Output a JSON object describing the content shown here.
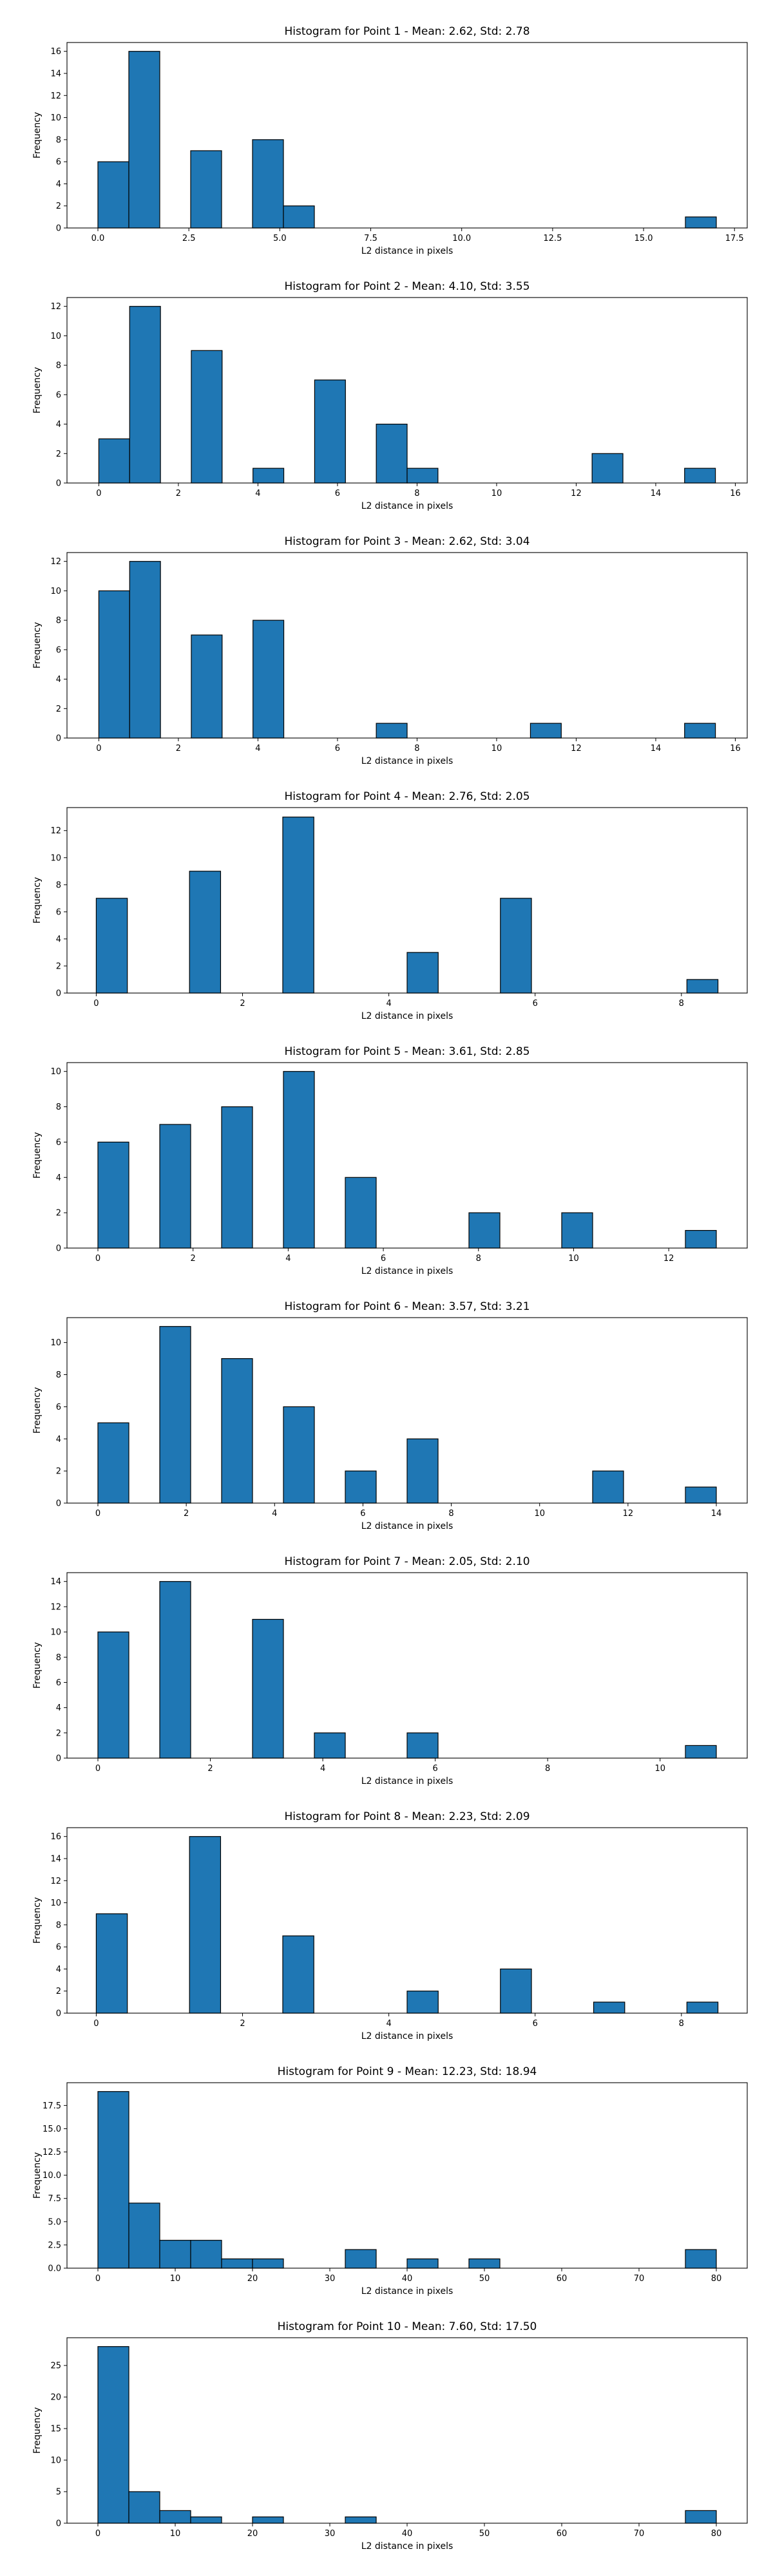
{
  "figure": {
    "background": "#ffffff",
    "bar_color": "#1f77b4",
    "edge_color": "#000000"
  },
  "chart_data": [
    {
      "type": "bar",
      "title": "Histogram for Point 1 - Mean: 2.62, Std: 2.78",
      "xlabel": "L2 distance in pixels",
      "ylabel": "Frequency",
      "xlim": [
        -0.85,
        17.85
      ],
      "ylim": [
        0,
        16.8
      ],
      "x_ticks": [
        0.0,
        2.5,
        5.0,
        7.5,
        10.0,
        12.5,
        15.0,
        17.5
      ],
      "x_tick_labels": [
        "0.0",
        "2.5",
        "5.0",
        "7.5",
        "10.0",
        "12.5",
        "15.0",
        "17.5"
      ],
      "y_ticks": [
        0,
        2,
        4,
        6,
        8,
        10,
        12,
        14,
        16
      ],
      "bin_edges": [
        0,
        0.85,
        1.7,
        2.55,
        3.4,
        4.25,
        5.1,
        5.95,
        6.8,
        7.65,
        8.5,
        9.35,
        10.2,
        11.05,
        11.9,
        12.75,
        13.6,
        14.45,
        15.3,
        16.15,
        17.0
      ],
      "counts": [
        6,
        16,
        0,
        7,
        0,
        8,
        2,
        0,
        0,
        0,
        0,
        0,
        0,
        0,
        0,
        0,
        0,
        0,
        0,
        1
      ]
    },
    {
      "type": "bar",
      "title": "Histogram for Point 2 - Mean: 4.10, Std: 3.55",
      "xlabel": "L2 distance in pixels",
      "ylabel": "Frequency",
      "xlim": [
        -0.8,
        16.3
      ],
      "ylim": [
        0,
        12.6
      ],
      "x_ticks": [
        0,
        2,
        4,
        6,
        8,
        10,
        12,
        14,
        16
      ],
      "x_tick_labels": [
        "0",
        "2",
        "4",
        "6",
        "8",
        "10",
        "12",
        "14",
        "16"
      ],
      "y_ticks": [
        0,
        2,
        4,
        6,
        8,
        10,
        12
      ],
      "bin_edges": [
        0,
        0.775,
        1.55,
        2.325,
        3.1,
        3.875,
        4.65,
        5.425,
        6.2,
        6.975,
        7.75,
        8.525,
        9.3,
        10.075,
        10.85,
        11.625,
        12.4,
        13.175,
        13.95,
        14.725,
        15.5
      ],
      "counts": [
        3,
        12,
        0,
        9,
        0,
        1,
        0,
        7,
        0,
        4,
        1,
        0,
        0,
        0,
        0,
        0,
        2,
        0,
        0,
        1
      ]
    },
    {
      "type": "bar",
      "title": "Histogram for Point 3 - Mean: 2.62, Std: 3.04",
      "xlabel": "L2 distance in pixels",
      "ylabel": "Frequency",
      "xlim": [
        -0.8,
        16.3
      ],
      "ylim": [
        0,
        12.6
      ],
      "x_ticks": [
        0,
        2,
        4,
        6,
        8,
        10,
        12,
        14,
        16
      ],
      "x_tick_labels": [
        "0",
        "2",
        "4",
        "6",
        "8",
        "10",
        "12",
        "14",
        "16"
      ],
      "y_ticks": [
        0,
        2,
        4,
        6,
        8,
        10,
        12
      ],
      "bin_edges": [
        0,
        0.775,
        1.55,
        2.325,
        3.1,
        3.875,
        4.65,
        5.425,
        6.2,
        6.975,
        7.75,
        8.525,
        9.3,
        10.075,
        10.85,
        11.625,
        12.4,
        13.175,
        13.95,
        14.725,
        15.5
      ],
      "counts": [
        10,
        12,
        0,
        7,
        0,
        8,
        0,
        0,
        0,
        1,
        0,
        0,
        0,
        0,
        1,
        0,
        0,
        0,
        0,
        1
      ]
    },
    {
      "type": "bar",
      "title": "Histogram for Point 4 - Mean: 2.76, Std: 2.05",
      "xlabel": "L2 distance in pixels",
      "ylabel": "Frequency",
      "xlim": [
        -0.4,
        8.9
      ],
      "ylim": [
        0,
        13.7
      ],
      "x_ticks": [
        0,
        2,
        4,
        6,
        8
      ],
      "x_tick_labels": [
        "0",
        "2",
        "4",
        "6",
        "8"
      ],
      "y_ticks": [
        0,
        2,
        4,
        6,
        8,
        10,
        12
      ],
      "bin_edges": [
        0,
        0.425,
        0.85,
        1.275,
        1.7,
        2.125,
        2.55,
        2.975,
        3.4,
        3.825,
        4.25,
        4.675,
        5.1,
        5.525,
        5.95,
        6.375,
        6.8,
        7.225,
        7.65,
        8.075,
        8.5
      ],
      "counts": [
        7,
        0,
        0,
        9,
        0,
        0,
        13,
        0,
        0,
        0,
        3,
        0,
        0,
        7,
        0,
        0,
        0,
        0,
        0,
        1
      ]
    },
    {
      "type": "bar",
      "title": "Histogram for Point 5 - Mean: 3.61, Std: 2.85",
      "xlabel": "L2 distance in pixels",
      "ylabel": "Frequency",
      "xlim": [
        -0.65,
        13.65
      ],
      "ylim": [
        0,
        10.5
      ],
      "x_ticks": [
        0,
        2,
        4,
        6,
        8,
        10,
        12
      ],
      "x_tick_labels": [
        "0",
        "2",
        "4",
        "6",
        "8",
        "10",
        "12"
      ],
      "y_ticks": [
        0,
        2,
        4,
        6,
        8,
        10
      ],
      "bin_edges": [
        0,
        0.65,
        1.3,
        1.95,
        2.6,
        3.25,
        3.9,
        4.55,
        5.2,
        5.85,
        6.5,
        7.15,
        7.8,
        8.45,
        9.1,
        9.75,
        10.4,
        11.05,
        11.7,
        12.35,
        13.0
      ],
      "counts": [
        6,
        0,
        7,
        0,
        8,
        0,
        10,
        0,
        4,
        0,
        0,
        0,
        2,
        0,
        0,
        2,
        0,
        0,
        0,
        1
      ]
    },
    {
      "type": "bar",
      "title": "Histogram for Point 6 - Mean: 3.57, Std: 3.21",
      "xlabel": "L2 distance in pixels",
      "ylabel": "Frequency",
      "xlim": [
        -0.7,
        14.7
      ],
      "ylim": [
        0,
        11.55
      ],
      "x_ticks": [
        0,
        2,
        4,
        6,
        8,
        10,
        12,
        14
      ],
      "x_tick_labels": [
        "0",
        "2",
        "4",
        "6",
        "8",
        "10",
        "12",
        "14"
      ],
      "y_ticks": [
        0,
        2,
        4,
        6,
        8,
        10
      ],
      "bin_edges": [
        0,
        0.7,
        1.4,
        2.1,
        2.8,
        3.5,
        4.2,
        4.9,
        5.6,
        6.3,
        7.0,
        7.7,
        8.4,
        9.1,
        9.8,
        10.5,
        11.2,
        11.9,
        12.6,
        13.3,
        14.0
      ],
      "counts": [
        5,
        0,
        11,
        0,
        9,
        0,
        6,
        0,
        2,
        0,
        4,
        0,
        0,
        0,
        0,
        0,
        2,
        0,
        0,
        1
      ]
    },
    {
      "type": "bar",
      "title": "Histogram for Point 7 - Mean: 2.05, Std: 2.10",
      "xlabel": "L2 distance in pixels",
      "ylabel": "Frequency",
      "xlim": [
        -0.55,
        11.55
      ],
      "ylim": [
        0,
        14.7
      ],
      "x_ticks": [
        0,
        2,
        4,
        6,
        8,
        10
      ],
      "x_tick_labels": [
        "0",
        "2",
        "4",
        "6",
        "8",
        "10"
      ],
      "y_ticks": [
        0,
        2,
        4,
        6,
        8,
        10,
        12,
        14
      ],
      "bin_edges": [
        0,
        0.55,
        1.1,
        1.65,
        2.2,
        2.75,
        3.3,
        3.85,
        4.4,
        4.95,
        5.5,
        6.05,
        6.6,
        7.15,
        7.7,
        8.25,
        8.8,
        9.35,
        9.9,
        10.45,
        11.0
      ],
      "counts": [
        10,
        0,
        14,
        0,
        0,
        11,
        0,
        2,
        0,
        0,
        2,
        0,
        0,
        0,
        0,
        0,
        0,
        0,
        0,
        1
      ]
    },
    {
      "type": "bar",
      "title": "Histogram for Point 8 - Mean: 2.23, Std: 2.09",
      "xlabel": "L2 distance in pixels",
      "ylabel": "Frequency",
      "xlim": [
        -0.4,
        8.9
      ],
      "ylim": [
        0,
        16.8
      ],
      "x_ticks": [
        0,
        2,
        4,
        6,
        8
      ],
      "x_tick_labels": [
        "0",
        "2",
        "4",
        "6",
        "8"
      ],
      "y_ticks": [
        0,
        2,
        4,
        6,
        8,
        10,
        12,
        14,
        16
      ],
      "bin_edges": [
        0,
        0.425,
        0.85,
        1.275,
        1.7,
        2.125,
        2.55,
        2.975,
        3.4,
        3.825,
        4.25,
        4.675,
        5.1,
        5.525,
        5.95,
        6.375,
        6.8,
        7.225,
        7.65,
        8.075,
        8.5
      ],
      "counts": [
        9,
        0,
        0,
        16,
        0,
        0,
        7,
        0,
        0,
        0,
        2,
        0,
        0,
        4,
        0,
        0,
        1,
        0,
        0,
        1
      ]
    },
    {
      "type": "bar",
      "title": "Histogram for Point 9 - Mean: 12.23, Std: 18.94",
      "xlabel": "L2 distance in pixels",
      "ylabel": "Frequency",
      "xlim": [
        -4.0,
        84.0
      ],
      "ylim": [
        0,
        19.95
      ],
      "x_ticks": [
        0,
        10,
        20,
        30,
        40,
        50,
        60,
        70,
        80
      ],
      "x_tick_labels": [
        "0",
        "10",
        "20",
        "30",
        "40",
        "50",
        "60",
        "70",
        "80"
      ],
      "y_ticks": [
        0.0,
        2.5,
        5.0,
        7.5,
        10.0,
        12.5,
        15.0,
        17.5
      ],
      "y_tick_labels": [
        "0.0",
        "2.5",
        "5.0",
        "7.5",
        "10.0",
        "12.5",
        "15.0",
        "17.5"
      ],
      "bin_edges": [
        0,
        4,
        8,
        12,
        16,
        20,
        24,
        28,
        32,
        36,
        40,
        44,
        48,
        52,
        56,
        60,
        64,
        68,
        72,
        76,
        80
      ],
      "counts": [
        19,
        7,
        3,
        3,
        1,
        1,
        0,
        0,
        2,
        0,
        1,
        0,
        1,
        0,
        0,
        0,
        0,
        0,
        0,
        2
      ]
    },
    {
      "type": "bar",
      "title": "Histogram for Point 10 - Mean: 7.60, Std: 17.50",
      "xlabel": "L2 distance in pixels",
      "ylabel": "Frequency",
      "xlim": [
        -4.0,
        84.0
      ],
      "ylim": [
        0,
        29.4
      ],
      "x_ticks": [
        0,
        10,
        20,
        30,
        40,
        50,
        60,
        70,
        80
      ],
      "x_tick_labels": [
        "0",
        "10",
        "20",
        "30",
        "40",
        "50",
        "60",
        "70",
        "80"
      ],
      "y_ticks": [
        0,
        5,
        10,
        15,
        20,
        25
      ],
      "bin_edges": [
        0,
        4,
        8,
        12,
        16,
        20,
        24,
        28,
        32,
        36,
        40,
        44,
        48,
        52,
        56,
        60,
        64,
        68,
        72,
        76,
        80
      ],
      "counts": [
        28,
        5,
        2,
        1,
        0,
        1,
        0,
        0,
        1,
        0,
        0,
        0,
        0,
        0,
        0,
        0,
        0,
        0,
        0,
        2
      ]
    }
  ]
}
